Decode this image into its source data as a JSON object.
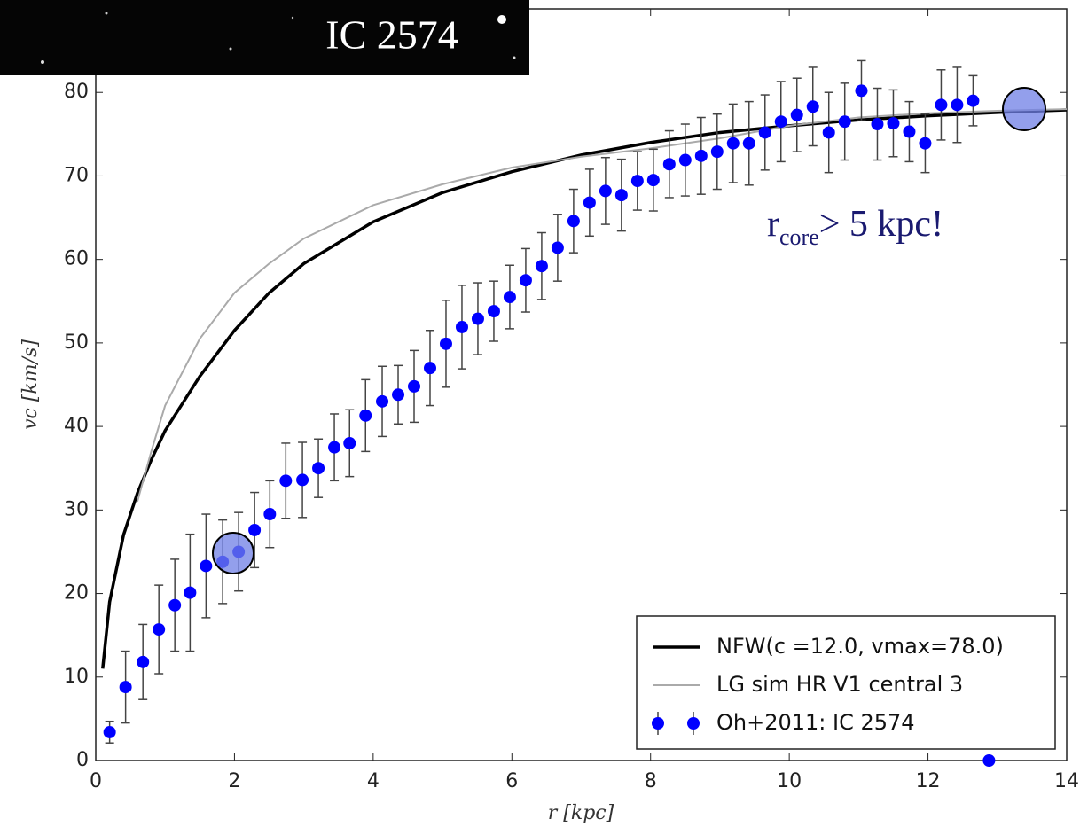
{
  "chart_data": {
    "type": "line",
    "title": "IC 2574",
    "annotation": {
      "main": "r",
      "sub": "core",
      "rest": "> 5 kpc!"
    },
    "xlabel": "r  [kpc]",
    "ylabel": "vc  [km/s]",
    "xlim": [
      0,
      14
    ],
    "ylim": [
      0,
      90
    ],
    "xticks": [
      0,
      2,
      4,
      6,
      8,
      10,
      12,
      14
    ],
    "yticks": [
      0,
      10,
      20,
      30,
      40,
      50,
      60,
      70,
      80
    ],
    "legend": "lower right",
    "x": [
      0.1,
      0.2,
      0.4,
      0.6,
      0.8,
      1,
      1.5,
      2,
      2.5,
      3,
      4,
      5,
      6,
      7,
      8,
      9,
      10,
      11,
      12,
      13,
      14
    ],
    "series": [
      {
        "name": "NFW(c =12.0, vmax=78.0)",
        "color": "#000000",
        "width": 3.5,
        "values": [
          11,
          19,
          27,
          32,
          36,
          39.5,
          46,
          51.5,
          56,
          59.5,
          64.5,
          68,
          70.5,
          72.5,
          74,
          75.2,
          76,
          76.7,
          77.2,
          77.6,
          77.9
        ]
      },
      {
        "name": "LG sim HR V1 central 3",
        "color": "#aaaaaa",
        "width": 2,
        "values": [
          null,
          null,
          null,
          31,
          37,
          42.5,
          50.5,
          56,
          59.5,
          62.5,
          66.5,
          69,
          71,
          72.3,
          73.3,
          74.5,
          76,
          77,
          77.5,
          77.8,
          78
        ]
      },
      {
        "name": "Oh+2011: IC 2574",
        "color": "#0000ff",
        "x": [
          0.2,
          0.43,
          0.68,
          0.91,
          1.14,
          1.36,
          1.59,
          1.83,
          2.06,
          2.29,
          2.51,
          2.74,
          2.98,
          3.21,
          3.44,
          3.66,
          3.89,
          4.13,
          4.36,
          4.59,
          4.82,
          5.05,
          5.28,
          5.51,
          5.74,
          5.97,
          6.2,
          6.43,
          6.66,
          6.89,
          7.12,
          7.35,
          7.58,
          7.81,
          8.04,
          8.27,
          8.5,
          8.73,
          8.96,
          9.19,
          9.42,
          9.65,
          9.88,
          10.11,
          10.34,
          10.57,
          10.8,
          11.04,
          11.27,
          11.5,
          11.73,
          11.96,
          12.19,
          12.42,
          12.65,
          12.88
        ],
        "values": [
          3.4,
          8.8,
          11.8,
          15.7,
          18.6,
          20.1,
          23.3,
          23.8,
          25.0,
          27.6,
          29.5,
          33.5,
          33.6,
          35.0,
          37.5,
          38.0,
          41.3,
          43.0,
          43.8,
          44.8,
          47.0,
          49.9,
          51.9,
          52.9,
          53.8,
          55.5,
          57.5,
          59.2,
          61.4,
          64.6,
          66.8,
          68.2,
          67.7,
          69.4,
          69.5,
          71.4,
          71.9,
          72.4,
          72.9,
          73.9,
          73.9,
          75.2,
          76.5,
          77.3,
          78.3,
          75.2,
          76.5,
          80.2,
          76.2,
          76.3,
          75.3,
          73.9,
          78.5,
          78.5,
          79.0,
          0
        ],
        "errors": [
          1.3,
          4.3,
          4.5,
          5.3,
          5.5,
          7,
          6.2,
          5,
          4.7,
          4.5,
          4,
          4.5,
          4.5,
          3.5,
          4,
          4,
          4.3,
          4.2,
          3.5,
          4.3,
          4.5,
          5.2,
          5,
          4.3,
          3.6,
          3.8,
          3.8,
          4,
          4,
          3.8,
          4,
          4,
          4.3,
          3.5,
          3.7,
          4,
          4.3,
          4.6,
          4.5,
          4.7,
          5,
          4.5,
          4.8,
          4.4,
          4.7,
          4.8,
          4.6,
          3.6,
          4.3,
          4,
          3.6,
          3.5,
          4.2,
          4.5,
          3,
          0
        ]
      }
    ]
  }
}
